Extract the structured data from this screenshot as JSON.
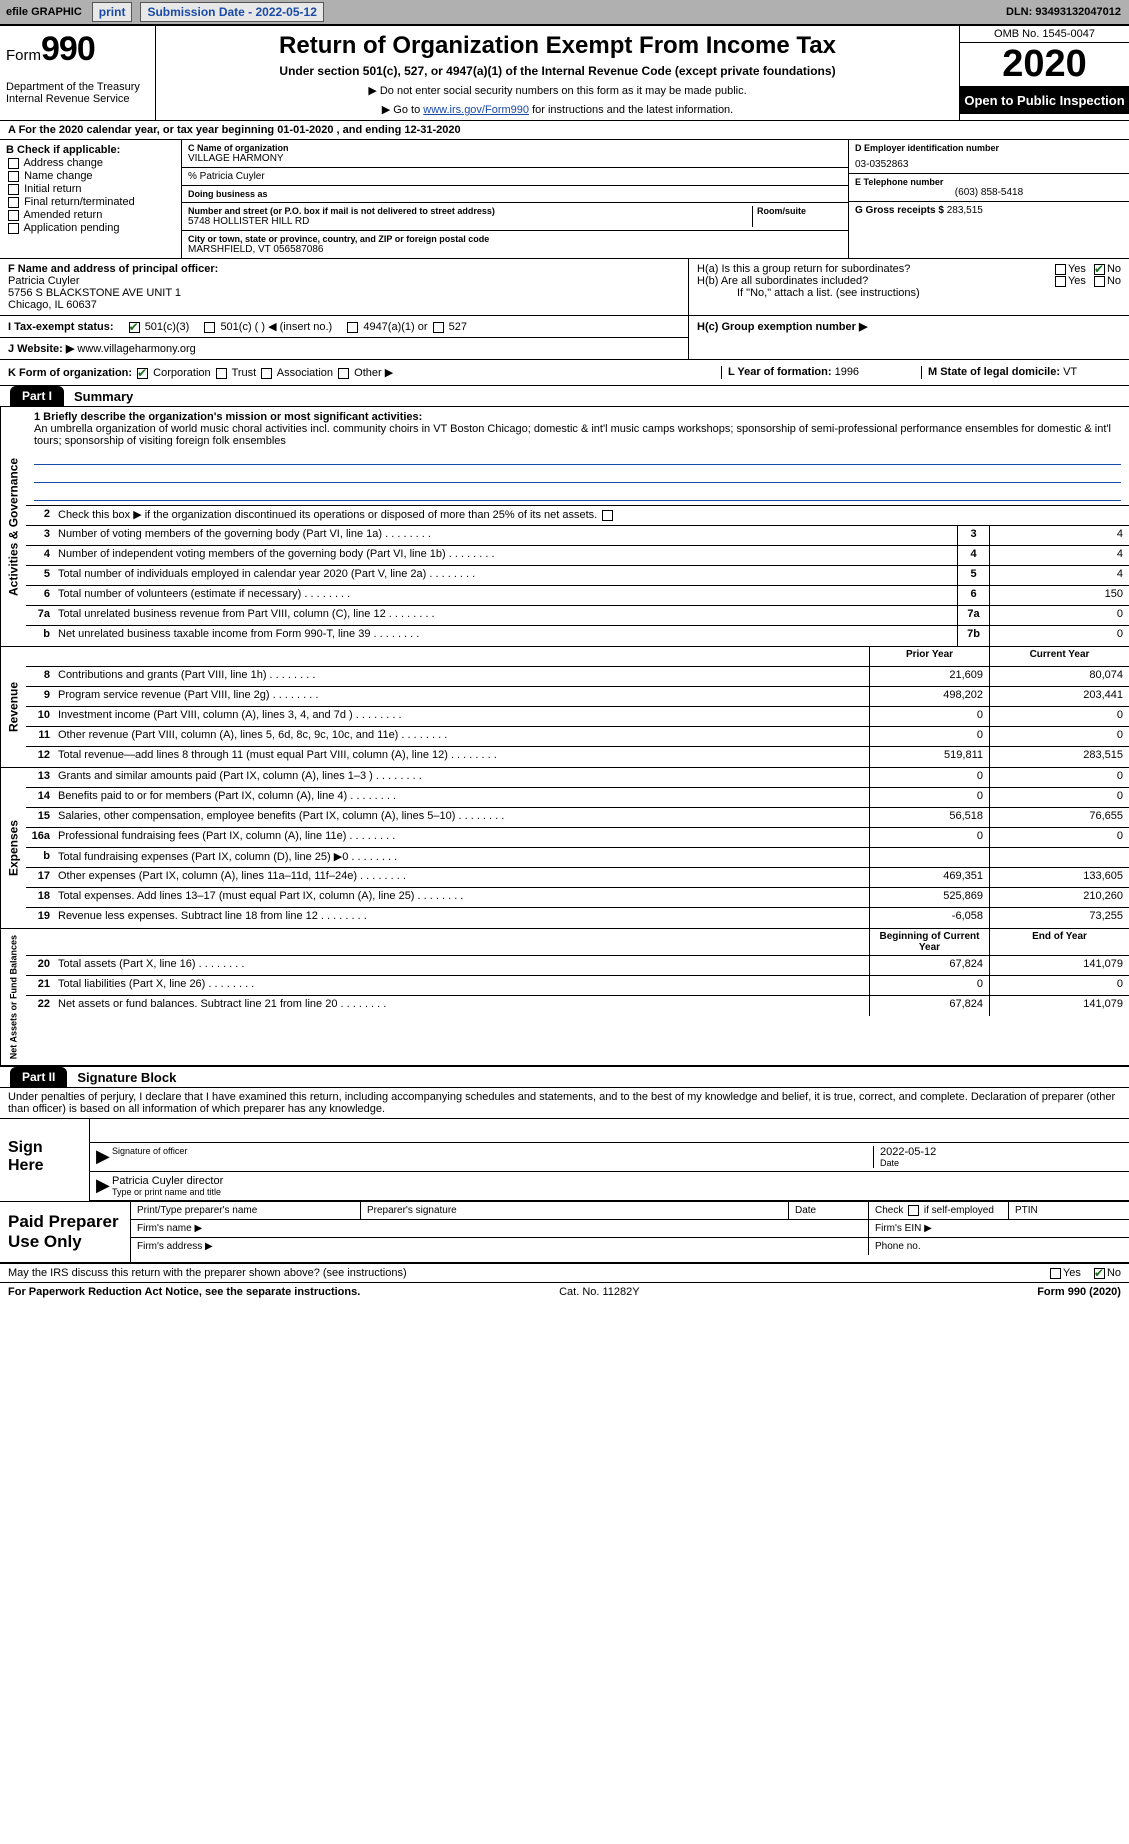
{
  "topbar": {
    "efile": "efile GRAPHIC",
    "print": "print",
    "submission_label": "Submission Date - 2022-05-12",
    "dln": "DLN: 93493132047012"
  },
  "header": {
    "form_word": "Form",
    "form_num": "990",
    "dept": "Department of the Treasury\nInternal Revenue Service",
    "title": "Return of Organization Exempt From Income Tax",
    "subtitle": "Under section 501(c), 527, or 4947(a)(1) of the Internal Revenue Code (except private foundations)",
    "note1": "▶ Do not enter social security numbers on this form as it may be made public.",
    "note2_pre": "▶ Go to ",
    "note2_link": "www.irs.gov/Form990",
    "note2_post": " for instructions and the latest information.",
    "omb": "OMB No. 1545-0047",
    "year": "2020",
    "inspect": "Open to Public Inspection"
  },
  "period": "A  For the 2020 calendar year, or tax year beginning 01-01-2020   , and ending 12-31-2020",
  "boxB": {
    "label": "B Check if applicable:",
    "items": [
      "Address change",
      "Name change",
      "Initial return",
      "Final return/terminated",
      "Amended return",
      "Application pending"
    ]
  },
  "boxC": {
    "name_label": "C Name of organization",
    "org": "VILLAGE HARMONY",
    "care_of": "% Patricia Cuyler",
    "dba_label": "Doing business as",
    "street_label": "Number and street (or P.O. box if mail is not delivered to street address)",
    "room_label": "Room/suite",
    "street": "5748 HOLLISTER HILL RD",
    "city_label": "City or town, state or province, country, and ZIP or foreign postal code",
    "city": "MARSHFIELD, VT  056587086"
  },
  "boxD": {
    "label": "D Employer identification number",
    "value": "03-0352863"
  },
  "boxE": {
    "label": "E Telephone number",
    "value": "(603) 858-5418"
  },
  "boxG": {
    "label": "G Gross receipts $",
    "value": "283,515"
  },
  "boxF": {
    "label": "F  Name and address of principal officer:",
    "name": "Patricia Cuyler",
    "addr1": "5756 S BLACKSTONE AVE UNIT 1",
    "addr2": "Chicago, IL  60637"
  },
  "boxH": {
    "ha": "H(a)  Is this a group return for subordinates?",
    "hb": "H(b)  Are all subordinates included?",
    "hb_note": "If \"No,\" attach a list. (see instructions)",
    "hc": "H(c)  Group exemption number ▶",
    "yes": "Yes",
    "no": "No"
  },
  "boxI": {
    "label": "I   Tax-exempt status:",
    "c3": "501(c)(3)",
    "c": "501(c) (  ) ◀ (insert no.)",
    "a4947": "4947(a)(1) or",
    "s527": "527"
  },
  "boxJ": {
    "label": "J   Website: ▶",
    "value": "www.villageharmony.org"
  },
  "boxK": {
    "label": "K Form of organization:",
    "corp": "Corporation",
    "trust": "Trust",
    "assoc": "Association",
    "other": "Other ▶"
  },
  "boxL": {
    "label": "L Year of formation:",
    "value": "1996"
  },
  "boxM": {
    "label": "M State of legal domicile:",
    "value": "VT"
  },
  "part1": {
    "tab": "Part I",
    "title": "Summary"
  },
  "summary": {
    "q1_label": "1  Briefly describe the organization's mission or most significant activities:",
    "q1_text": "An umbrella organization of world music choral activities incl. community choirs in VT Boston Chicago; domestic & int'l music camps workshops; sponsorship of semi-professional performance ensembles for domestic & int'l tours; sponsorship of visiting foreign folk ensembles",
    "q2": "Check this box ▶       if the organization discontinued its operations or disposed of more than 25% of its net assets.",
    "rows_ag": [
      {
        "n": "3",
        "t": "Number of voting members of the governing body (Part VI, line 1a)",
        "box": "3",
        "v": "4"
      },
      {
        "n": "4",
        "t": "Number of independent voting members of the governing body (Part VI, line 1b)",
        "box": "4",
        "v": "4"
      },
      {
        "n": "5",
        "t": "Total number of individuals employed in calendar year 2020 (Part V, line 2a)",
        "box": "5",
        "v": "4"
      },
      {
        "n": "6",
        "t": "Total number of volunteers (estimate if necessary)",
        "box": "6",
        "v": "150"
      },
      {
        "n": "7a",
        "t": "Total unrelated business revenue from Part VIII, column (C), line 12",
        "box": "7a",
        "v": "0"
      },
      {
        "n": "b",
        "t": "Net unrelated business taxable income from Form 990-T, line 39",
        "box": "7b",
        "v": "0"
      }
    ],
    "col_prior": "Prior Year",
    "col_current": "Current Year",
    "rows_rev": [
      {
        "n": "8",
        "t": "Contributions and grants (Part VIII, line 1h)",
        "p": "21,609",
        "c": "80,074"
      },
      {
        "n": "9",
        "t": "Program service revenue (Part VIII, line 2g)",
        "p": "498,202",
        "c": "203,441"
      },
      {
        "n": "10",
        "t": "Investment income (Part VIII, column (A), lines 3, 4, and 7d )",
        "p": "0",
        "c": "0"
      },
      {
        "n": "11",
        "t": "Other revenue (Part VIII, column (A), lines 5, 6d, 8c, 9c, 10c, and 11e)",
        "p": "0",
        "c": "0"
      },
      {
        "n": "12",
        "t": "Total revenue—add lines 8 through 11 (must equal Part VIII, column (A), line 12)",
        "p": "519,811",
        "c": "283,515"
      }
    ],
    "rows_exp": [
      {
        "n": "13",
        "t": "Grants and similar amounts paid (Part IX, column (A), lines 1–3 )",
        "p": "0",
        "c": "0"
      },
      {
        "n": "14",
        "t": "Benefits paid to or for members (Part IX, column (A), line 4)",
        "p": "0",
        "c": "0"
      },
      {
        "n": "15",
        "t": "Salaries, other compensation, employee benefits (Part IX, column (A), lines 5–10)",
        "p": "56,518",
        "c": "76,655"
      },
      {
        "n": "16a",
        "t": "Professional fundraising fees (Part IX, column (A), line 11e)",
        "p": "0",
        "c": "0"
      },
      {
        "n": "b",
        "t": "Total fundraising expenses (Part IX, column (D), line 25) ▶0",
        "p": "",
        "c": ""
      },
      {
        "n": "17",
        "t": "Other expenses (Part IX, column (A), lines 11a–11d, 11f–24e)",
        "p": "469,351",
        "c": "133,605"
      },
      {
        "n": "18",
        "t": "Total expenses. Add lines 13–17 (must equal Part IX, column (A), line 25)",
        "p": "525,869",
        "c": "210,260"
      },
      {
        "n": "19",
        "t": "Revenue less expenses. Subtract line 18 from line 12",
        "p": "-6,058",
        "c": "73,255"
      }
    ],
    "col_begin": "Beginning of Current Year",
    "col_end": "End of Year",
    "rows_net": [
      {
        "n": "20",
        "t": "Total assets (Part X, line 16)",
        "p": "67,824",
        "c": "141,079"
      },
      {
        "n": "21",
        "t": "Total liabilities (Part X, line 26)",
        "p": "0",
        "c": "0"
      },
      {
        "n": "22",
        "t": "Net assets or fund balances. Subtract line 21 from line 20",
        "p": "67,824",
        "c": "141,079"
      }
    ],
    "vlabels": {
      "ag": "Activities & Governance",
      "rev": "Revenue",
      "exp": "Expenses",
      "net": "Net Assets or Fund Balances"
    }
  },
  "part2": {
    "tab": "Part II",
    "title": "Signature Block"
  },
  "sig": {
    "perjury": "Under penalties of perjury, I declare that I have examined this return, including accompanying schedules and statements, and to the best of my knowledge and belief, it is true, correct, and complete. Declaration of preparer (other than officer) is based on all information of which preparer has any knowledge.",
    "sign_here": "Sign Here",
    "sig_officer": "Signature of officer",
    "date_label": "Date",
    "sig_date": "2022-05-12",
    "name_title": "Patricia Cuyler  director",
    "type_label": "Type or print name and title"
  },
  "paid": {
    "label": "Paid Preparer Use Only",
    "r1": {
      "a": "Print/Type preparer's name",
      "b": "Preparer's signature",
      "c": "Date",
      "d": "Check        if self-employed",
      "e": "PTIN"
    },
    "r2": {
      "a": "Firm's name  ▶",
      "b": "Firm's EIN ▶"
    },
    "r3": {
      "a": "Firm's address ▶",
      "b": "Phone no."
    }
  },
  "footer": {
    "discuss": "May the IRS discuss this return with the preparer shown above? (see instructions)",
    "yes": "Yes",
    "no": "No",
    "paperwork": "For Paperwork Reduction Act Notice, see the separate instructions.",
    "cat": "Cat. No. 11282Y",
    "form": "Form 990 (2020)"
  }
}
